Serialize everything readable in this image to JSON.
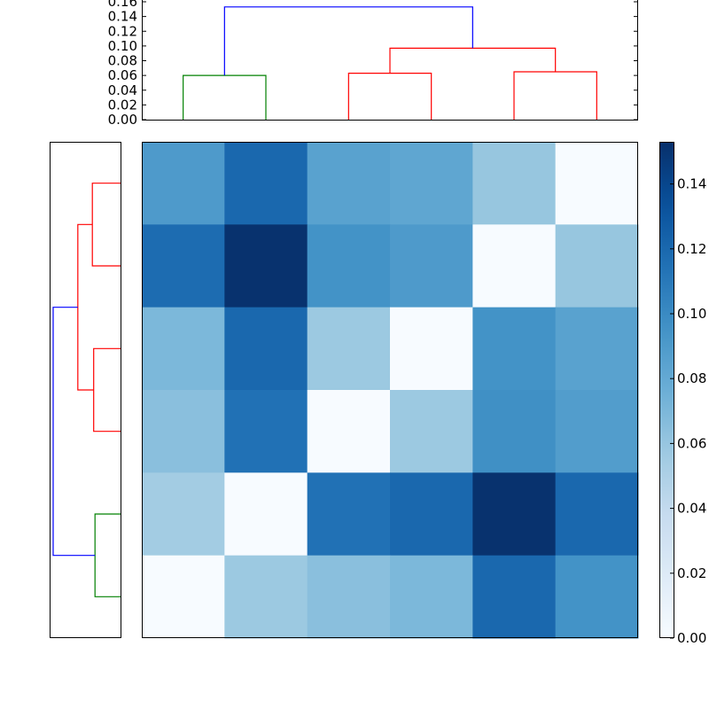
{
  "chart_data": {
    "type": "heatmap",
    "colormap": "Blues",
    "color_range": [
      0.0,
      0.153
    ],
    "matrix": [
      [
        0.09,
        0.12,
        0.085,
        0.082,
        0.06,
        0.0
      ],
      [
        0.118,
        0.152,
        0.095,
        0.09,
        0.0,
        0.06
      ],
      [
        0.07,
        0.12,
        0.058,
        0.0,
        0.095,
        0.085
      ],
      [
        0.065,
        0.115,
        0.0,
        0.058,
        0.097,
        0.088
      ],
      [
        0.055,
        0.0,
        0.115,
        0.12,
        0.152,
        0.12
      ],
      [
        0.0,
        0.058,
        0.065,
        0.07,
        0.12,
        0.095
      ]
    ],
    "colorbar": {
      "ticks": [
        "0.00",
        "0.02",
        "0.04",
        "0.06",
        "0.08",
        "0.10",
        "0.12",
        "0.14"
      ]
    },
    "top_dendrogram": {
      "ylim": [
        0,
        0.16
      ],
      "yticks": [
        "0.00",
        "0.02",
        "0.04",
        "0.06",
        "0.08",
        "0.10",
        "0.12",
        "0.14",
        "0.16"
      ],
      "links": [
        {
          "left": 0,
          "right": 1,
          "height": 0.06,
          "left_h": 0,
          "right_h": 0,
          "color": "#008000"
        },
        {
          "left": 2,
          "right": 3,
          "height": 0.063,
          "left_h": 0,
          "right_h": 0,
          "color": "#ff0000"
        },
        {
          "left": 4,
          "right": 5,
          "height": 0.065,
          "left_h": 0,
          "right_h": 0,
          "color": "#ff0000"
        },
        {
          "left": 2.5,
          "right": 4.5,
          "height": 0.097,
          "left_h": 0.063,
          "right_h": 0.065,
          "color": "#ff0000"
        },
        {
          "left": 0.5,
          "right": 3.5,
          "height": 0.153,
          "left_h": 0.06,
          "right_h": 0.097,
          "color": "#0000ff"
        }
      ]
    },
    "left_dendrogram": {
      "links": [
        {
          "left": 0,
          "right": 1,
          "height": 0.064,
          "left_h": 0,
          "right_h": 0,
          "color": "#ff0000"
        },
        {
          "left": 2,
          "right": 3,
          "height": 0.061,
          "left_h": 0,
          "right_h": 0,
          "color": "#ff0000"
        },
        {
          "left": 4,
          "right": 5,
          "height": 0.058,
          "left_h": 0,
          "right_h": 0,
          "color": "#008000"
        },
        {
          "left": 0.5,
          "right": 2.5,
          "height": 0.097,
          "left_h": 0.064,
          "right_h": 0.061,
          "color": "#ff0000"
        },
        {
          "left": 1.5,
          "right": 4.5,
          "height": 0.153,
          "left_h": 0.097,
          "right_h": 0.058,
          "color": "#0000ff"
        }
      ]
    }
  }
}
